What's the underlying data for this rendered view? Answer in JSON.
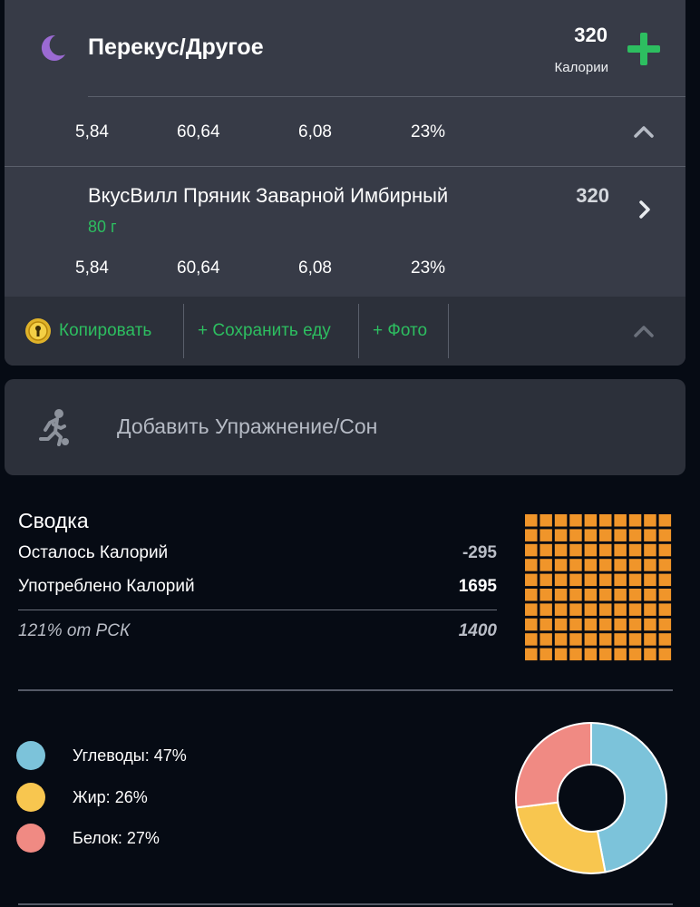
{
  "meal": {
    "title": "Перекус/Другое",
    "calories": "320",
    "calories_label": "Калории",
    "macros": [
      "5,84",
      "60,64",
      "6,08",
      "23%"
    ],
    "icon": "moon-icon"
  },
  "food_item": {
    "name": "ВкусВилл Пряник Заварной Имбирный",
    "amount": "80 г",
    "calories": "320",
    "macros": [
      "5,84",
      "60,64",
      "6,08",
      "23%"
    ]
  },
  "actions": {
    "copy": "Копировать",
    "save_food": "+ Сохранить еду",
    "photo": "+ Фото"
  },
  "exercise": {
    "label": "Добавить Упражнение/Сон",
    "icon": "running-icon"
  },
  "summary": {
    "title": "Сводка",
    "remaining_label": "Осталось Калорий",
    "remaining_value": "-295",
    "consumed_label": "Употреблено Калорий",
    "consumed_value": "1695",
    "rsk_label": "121% от РСК",
    "rsk_value": "1400",
    "remaining_color": "#b9bdc6",
    "grid_color": "#f0952a"
  },
  "macros_breakdown": [
    {
      "label": "Углеводы: 47%",
      "percent": 47,
      "color": "#7cc3da"
    },
    {
      "label": "Жир: 26%",
      "percent": 26,
      "color": "#f8c64f"
    },
    {
      "label": "Белок: 27%",
      "percent": 27,
      "color": "#f08a83"
    }
  ],
  "colors": {
    "accent_green": "#2dbe60",
    "card_bg": "#373b47",
    "page_bg": "#060b14"
  }
}
